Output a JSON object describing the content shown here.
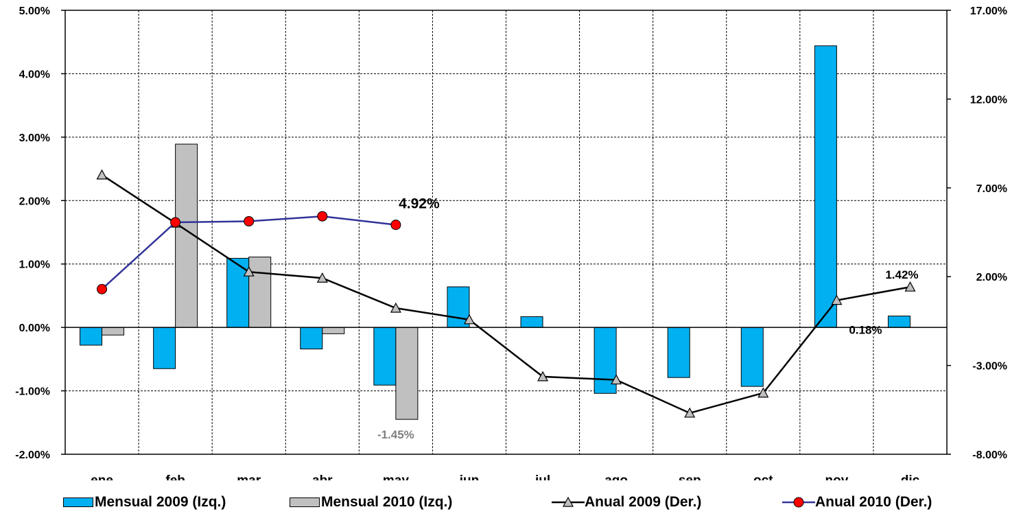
{
  "chart_data": {
    "type": "bar",
    "categories": [
      "ene",
      "feb",
      "mar",
      "abr",
      "may",
      "jun",
      "jul",
      "ago",
      "sep",
      "oct",
      "nov",
      "dic"
    ],
    "y_left": {
      "ticks": [
        "5.00%",
        "4.00%",
        "3.00%",
        "2.00%",
        "1.00%",
        "0.00%",
        "-1.00%",
        "-2.00%"
      ],
      "ylim": [
        -2,
        5
      ]
    },
    "y_right": {
      "ticks": [
        "17.00%",
        "12.00%",
        "7.00%",
        "2.00%",
        "-3.00%",
        "-8.00%"
      ],
      "ylim": [
        -8,
        17
      ]
    },
    "grid": true,
    "legend_position": "bottom",
    "series": [
      {
        "name": "Mensual 2009 (Izq.)",
        "type": "bar",
        "axis": "left",
        "color": "#00B0F0",
        "values": [
          -0.28,
          -0.65,
          1.09,
          -0.34,
          -0.91,
          0.64,
          0.17,
          -1.04,
          -0.79,
          -0.93,
          4.44,
          0.18
        ]
      },
      {
        "name": "Mensual 2010 (Izq.)",
        "type": "bar",
        "axis": "left",
        "color": "#C0C0C0",
        "values": [
          -0.12,
          2.89,
          1.11,
          -0.1,
          -1.45,
          null,
          null,
          null,
          null,
          null,
          null,
          null
        ]
      },
      {
        "name": "Anual 2009 (Der.)",
        "type": "line",
        "axis": "right",
        "color": "#000000",
        "marker": "triangle",
        "values": [
          7.73,
          5.02,
          2.27,
          1.92,
          0.23,
          -0.42,
          -3.63,
          -3.81,
          -5.68,
          -4.55,
          0.67,
          1.42
        ]
      },
      {
        "name": "Anual 2010 (Der.)",
        "type": "line",
        "axis": "right",
        "color": "#333399",
        "marker": "circle",
        "marker_color": "#FF0000",
        "values": [
          1.3,
          5.06,
          5.12,
          5.4,
          4.92,
          null,
          null,
          null,
          null,
          null,
          null,
          null
        ]
      }
    ],
    "annotations": [
      {
        "text": "4.92%",
        "category": "may",
        "series": 3
      },
      {
        "text": "-1.45%",
        "category": "may",
        "series": 1
      },
      {
        "text": "1.42%",
        "category": "dic",
        "series": 2
      },
      {
        "text": "0.18%",
        "category": "dic",
        "series": 0
      }
    ]
  }
}
